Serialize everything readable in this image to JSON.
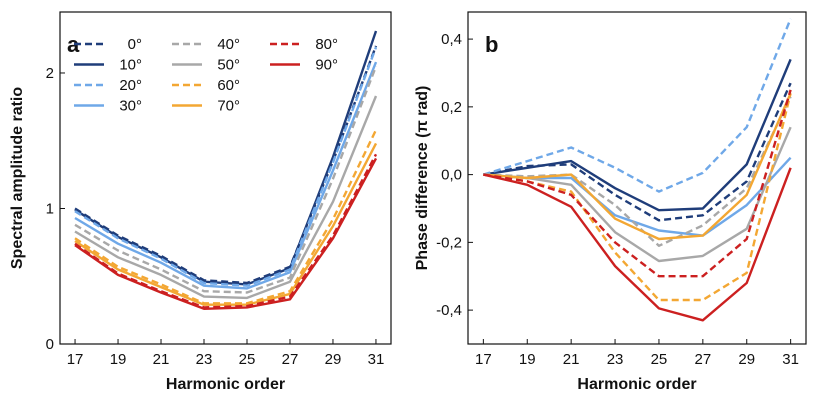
{
  "chart_data": [
    {
      "type": "line",
      "panel_label": "a",
      "xlabel": "Harmonic order",
      "ylabel": "Spectral amplitude ratio",
      "x": [
        17,
        19,
        21,
        23,
        25,
        27,
        29,
        31
      ],
      "x_ticks": [
        "17",
        "19",
        "21",
        "23",
        "25",
        "27",
        "29",
        "31"
      ],
      "y_ticks": [
        {
          "value": 0,
          "label": "0"
        },
        {
          "value": 1,
          "label": "1"
        },
        {
          "value": 2,
          "label": "2"
        }
      ],
      "xlim": [
        16.3,
        31.7
      ],
      "ylim": [
        0,
        2.45
      ],
      "legend_position": "top-left",
      "series": [
        {
          "name": "0°",
          "color": "#1f3d7a",
          "dash": "dashed",
          "values": [
            1.0,
            0.8,
            0.65,
            0.47,
            0.45,
            0.57,
            1.35,
            2.2
          ]
        },
        {
          "name": "10°",
          "color": "#1f3d7a",
          "dash": "solid",
          "values": [
            0.99,
            0.79,
            0.64,
            0.46,
            0.44,
            0.56,
            1.38,
            2.31
          ]
        },
        {
          "name": "20°",
          "color": "#6fa8e8",
          "dash": "dashed",
          "values": [
            0.98,
            0.78,
            0.63,
            0.45,
            0.43,
            0.55,
            1.34,
            2.19
          ]
        },
        {
          "name": "30°",
          "color": "#6fa8e8",
          "dash": "solid",
          "values": [
            0.93,
            0.74,
            0.6,
            0.43,
            0.41,
            0.53,
            1.28,
            2.08
          ]
        },
        {
          "name": "40°",
          "color": "#a8a8a8",
          "dash": "dashed",
          "values": [
            0.88,
            0.69,
            0.55,
            0.39,
            0.38,
            0.49,
            1.22,
            2.05
          ]
        },
        {
          "name": "50°",
          "color": "#a8a8a8",
          "dash": "solid",
          "values": [
            0.83,
            0.64,
            0.51,
            0.35,
            0.34,
            0.46,
            1.05,
            1.83
          ]
        },
        {
          "name": "60°",
          "color": "#f3a733",
          "dash": "dashed",
          "values": [
            0.78,
            0.57,
            0.44,
            0.3,
            0.3,
            0.39,
            0.92,
            1.58
          ]
        },
        {
          "name": "70°",
          "color": "#f3a733",
          "dash": "solid",
          "values": [
            0.76,
            0.55,
            0.42,
            0.29,
            0.29,
            0.37,
            0.87,
            1.48
          ]
        },
        {
          "name": "80°",
          "color": "#cc2020",
          "dash": "dashed",
          "values": [
            0.74,
            0.52,
            0.39,
            0.27,
            0.28,
            0.35,
            0.8,
            1.4
          ]
        },
        {
          "name": "90°",
          "color": "#cc2020",
          "dash": "solid",
          "values": [
            0.73,
            0.51,
            0.38,
            0.26,
            0.27,
            0.33,
            0.78,
            1.37
          ]
        }
      ]
    },
    {
      "type": "line",
      "panel_label": "b",
      "xlabel": "Harmonic order",
      "ylabel": "Phase difference (π rad)",
      "x": [
        17,
        19,
        21,
        23,
        25,
        27,
        29,
        31
      ],
      "x_ticks": [
        "17",
        "19",
        "21",
        "23",
        "25",
        "27",
        "29",
        "31"
      ],
      "y_ticks": [
        {
          "value": -0.4,
          "label": "-0,4"
        },
        {
          "value": -0.2,
          "label": "-0,2"
        },
        {
          "value": 0.0,
          "label": "0,0"
        },
        {
          "value": 0.2,
          "label": "0,2"
        },
        {
          "value": 0.4,
          "label": "0,4"
        }
      ],
      "xlim": [
        16.3,
        31.7
      ],
      "ylim": [
        -0.5,
        0.48
      ],
      "series": [
        {
          "name": "0°",
          "color": "#1f3d7a",
          "dash": "dashed",
          "values": [
            0,
            0.025,
            0.03,
            -0.06,
            -0.135,
            -0.12,
            -0.02,
            0.27
          ]
        },
        {
          "name": "10°",
          "color": "#1f3d7a",
          "dash": "solid",
          "values": [
            0,
            0.02,
            0.04,
            -0.04,
            -0.105,
            -0.1,
            0.03,
            0.34
          ]
        },
        {
          "name": "20°",
          "color": "#6fa8e8",
          "dash": "dashed",
          "values": [
            0,
            0.04,
            0.08,
            0.02,
            -0.05,
            0.005,
            0.14,
            0.46
          ]
        },
        {
          "name": "30°",
          "color": "#6fa8e8",
          "dash": "solid",
          "values": [
            0,
            -0.01,
            -0.01,
            -0.12,
            -0.165,
            -0.18,
            -0.09,
            0.05
          ]
        },
        {
          "name": "40°",
          "color": "#a8a8a8",
          "dash": "dashed",
          "values": [
            0,
            -0.005,
            0.0,
            -0.09,
            -0.21,
            -0.15,
            -0.04,
            0.23
          ]
        },
        {
          "name": "50°",
          "color": "#a8a8a8",
          "dash": "solid",
          "values": [
            0,
            -0.01,
            -0.03,
            -0.17,
            -0.255,
            -0.24,
            -0.16,
            0.14
          ]
        },
        {
          "name": "60°",
          "color": "#f3a733",
          "dash": "dashed",
          "values": [
            0,
            -0.02,
            -0.05,
            -0.23,
            -0.37,
            -0.37,
            -0.29,
            0.24
          ]
        },
        {
          "name": "70°",
          "color": "#f3a733",
          "dash": "solid",
          "values": [
            0,
            -0.01,
            0.0,
            -0.13,
            -0.19,
            -0.18,
            -0.06,
            0.24
          ]
        },
        {
          "name": "80°",
          "color": "#cc2020",
          "dash": "dashed",
          "values": [
            0,
            -0.02,
            -0.06,
            -0.2,
            -0.3,
            -0.3,
            -0.19,
            0.25
          ]
        },
        {
          "name": "90°",
          "color": "#cc2020",
          "dash": "solid",
          "values": [
            0,
            -0.03,
            -0.095,
            -0.27,
            -0.395,
            -0.43,
            -0.32,
            0.02
          ]
        }
      ]
    }
  ]
}
